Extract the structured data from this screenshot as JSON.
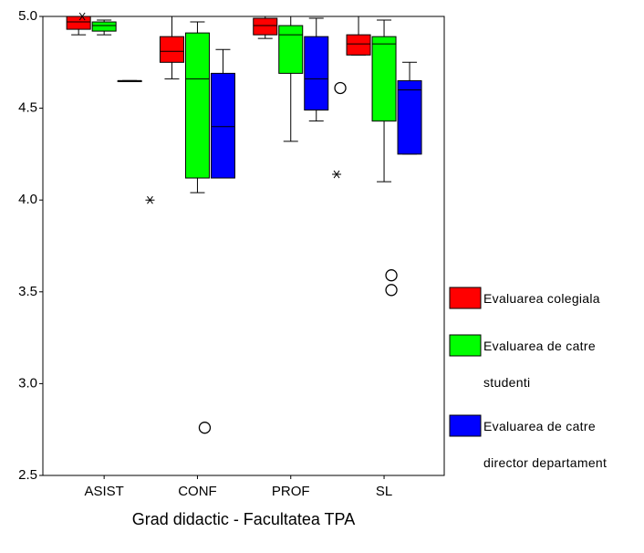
{
  "chart_data": {
    "type": "box",
    "x_label": "Grad didactic - Facultatea TPA",
    "categories": [
      "ASIST",
      "CONF",
      "PROF",
      "SL"
    ],
    "ylim": [
      2.5,
      5.0
    ],
    "yticks": [
      {
        "value": 2.5,
        "label": "2.5"
      },
      {
        "value": 3.0,
        "label": "3.0"
      },
      {
        "value": 3.5,
        "label": "3.5"
      },
      {
        "value": 4.0,
        "label": "4.0"
      },
      {
        "value": 4.5,
        "label": "4.5"
      },
      {
        "value": 5.0,
        "label": "5.0"
      }
    ],
    "series": [
      {
        "name": "Evaluarea colegiala",
        "color": "#ff0000",
        "min": [
          4.9,
          4.66,
          4.88,
          4.79
        ],
        "q1": [
          4.93,
          4.75,
          4.9,
          4.79
        ],
        "median": [
          4.97,
          4.81,
          4.95,
          4.85
        ],
        "q3": [
          5.0,
          4.89,
          4.99,
          4.9
        ],
        "max": [
          5.0,
          5.0,
          5.0,
          5.0
        ],
        "outliers": [
          [],
          [],
          [],
          [
            4.61
          ]
        ],
        "extremes": [
          [],
          [
            4.0
          ],
          [],
          [
            4.14
          ]
        ]
      },
      {
        "name": "Evaluarea de catre studenti",
        "color": "#00ff00",
        "min": [
          4.9,
          4.04,
          4.32,
          4.1
        ],
        "q1": [
          4.92,
          4.12,
          4.69,
          4.43
        ],
        "median": [
          4.95,
          4.66,
          4.9,
          4.85
        ],
        "q3": [
          4.97,
          4.91,
          4.95,
          4.89
        ],
        "max": [
          4.98,
          4.97,
          5.0,
          4.98
        ],
        "outliers": [
          [],
          [],
          [],
          []
        ],
        "extremes": [
          [
            5.0
          ],
          [],
          [],
          []
        ]
      },
      {
        "name": "Evaluarea de catre director departament",
        "color": "#0000ff",
        "min": [
          4.65,
          4.12,
          4.43,
          4.25
        ],
        "q1": [
          4.65,
          4.12,
          4.49,
          4.25
        ],
        "median": [
          4.65,
          4.4,
          4.66,
          4.6
        ],
        "q3": [
          4.65,
          4.69,
          4.89,
          4.65
        ],
        "max": [
          4.65,
          4.82,
          4.99,
          4.75
        ],
        "outliers": [
          [],
          [
            2.76
          ],
          [],
          [
            3.59,
            3.51
          ]
        ],
        "extremes": [
          [],
          [],
          [],
          []
        ]
      }
    ]
  }
}
